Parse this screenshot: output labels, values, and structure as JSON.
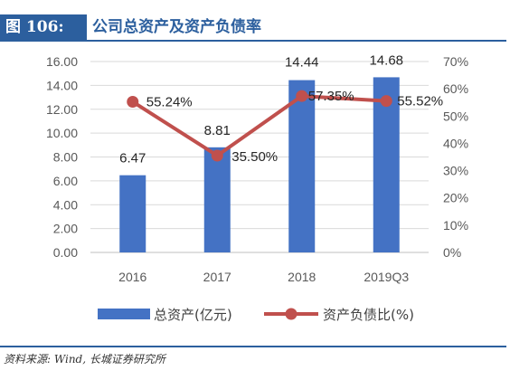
{
  "header": {
    "figure_tag": "图 106:",
    "title": "公司总资产及资产负债率"
  },
  "source": "资料来源: Wind, 长城证券研究所",
  "colors": {
    "bar": "#4472c4",
    "line": "#c0504d",
    "accent": "#2c5f9e"
  },
  "chart_data": {
    "type": "bar",
    "categories": [
      "2016",
      "2017",
      "2018",
      "2019Q3"
    ],
    "series": [
      {
        "name": "总资产(亿元)",
        "type": "bar",
        "axis": "left",
        "values": [
          6.47,
          8.81,
          14.44,
          14.68
        ],
        "labels": [
          "6.47",
          "8.81",
          "14.44",
          "14.68"
        ]
      },
      {
        "name": "资产负债比(%)",
        "type": "line",
        "axis": "right",
        "values": [
          55.24,
          35.5,
          57.35,
          55.52
        ],
        "labels": [
          "55.24%",
          "35.50%",
          "57.35%",
          "55.52%"
        ]
      }
    ],
    "y_left": {
      "min": 0,
      "max": 16,
      "ticks": [
        "0.00",
        "2.00",
        "4.00",
        "6.00",
        "8.00",
        "10.00",
        "12.00",
        "14.00",
        "16.00"
      ]
    },
    "y_right": {
      "min": 0,
      "max": 70,
      "ticks": [
        "0%",
        "10%",
        "20%",
        "30%",
        "40%",
        "50%",
        "60%",
        "70%"
      ]
    },
    "grid": true,
    "legend": "bottom"
  }
}
